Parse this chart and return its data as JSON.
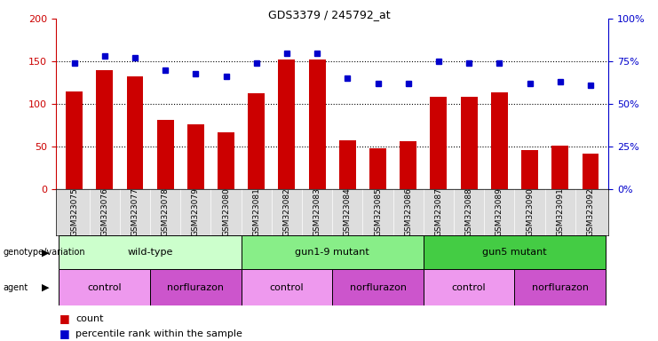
{
  "title": "GDS3379 / 245792_at",
  "categories": [
    "GSM323075",
    "GSM323076",
    "GSM323077",
    "GSM323078",
    "GSM323079",
    "GSM323080",
    "GSM323081",
    "GSM323082",
    "GSM323083",
    "GSM323084",
    "GSM323085",
    "GSM323086",
    "GSM323087",
    "GSM323088",
    "GSM323089",
    "GSM323090",
    "GSM323091",
    "GSM323092"
  ],
  "counts": [
    115,
    140,
    132,
    81,
    76,
    67,
    113,
    152,
    152,
    57,
    48,
    56,
    108,
    108,
    114,
    46,
    51,
    42
  ],
  "percentile_ranks": [
    74,
    78,
    77,
    70,
    68,
    66,
    74,
    80,
    80,
    65,
    62,
    62,
    75,
    74,
    74,
    62,
    63,
    61
  ],
  "bar_color": "#cc0000",
  "square_color": "#0000cc",
  "left_ylim": [
    0,
    200
  ],
  "right_ylim": [
    0,
    100
  ],
  "left_yticks": [
    0,
    50,
    100,
    150,
    200
  ],
  "right_yticks": [
    0,
    25,
    50,
    75,
    100
  ],
  "right_yticklabels": [
    "0%",
    "25%",
    "50%",
    "75%",
    "100%"
  ],
  "grid_values": [
    50,
    100,
    150
  ],
  "genotype_groups": [
    {
      "label": "wild-type",
      "start": 0,
      "end": 6,
      "color": "#ccffcc"
    },
    {
      "label": "gun1-9 mutant",
      "start": 6,
      "end": 12,
      "color": "#88ee88"
    },
    {
      "label": "gun5 mutant",
      "start": 12,
      "end": 18,
      "color": "#44cc44"
    }
  ],
  "agent_groups": [
    {
      "label": "control",
      "start": 0,
      "end": 3,
      "color": "#ee99ee"
    },
    {
      "label": "norflurazon",
      "start": 3,
      "end": 6,
      "color": "#cc55cc"
    },
    {
      "label": "control",
      "start": 6,
      "end": 9,
      "color": "#ee99ee"
    },
    {
      "label": "norflurazon",
      "start": 9,
      "end": 12,
      "color": "#cc55cc"
    },
    {
      "label": "control",
      "start": 12,
      "end": 15,
      "color": "#ee99ee"
    },
    {
      "label": "norflurazon",
      "start": 15,
      "end": 18,
      "color": "#cc55cc"
    }
  ],
  "bar_color_legend": "#cc0000",
  "square_color_legend": "#0000cc",
  "background_color": "#ffffff",
  "xtick_bg_color": "#dddddd",
  "left_label_color": "#cc0000",
  "right_label_color": "#0000cc"
}
